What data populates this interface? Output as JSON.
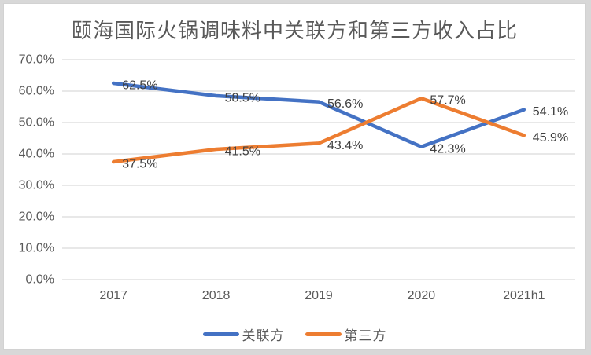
{
  "chart_data": {
    "type": "line",
    "title": "颐海国际火锅调味料中关联方和第三方收入占比",
    "categories": [
      "2017",
      "2018",
      "2019",
      "2020",
      "2021h1"
    ],
    "series": [
      {
        "name": "关联方",
        "color": "#4472C4",
        "values": [
          62.5,
          58.5,
          56.6,
          42.3,
          54.1
        ],
        "labels": [
          "62.5%",
          "58.5%",
          "56.6%",
          "42.3%",
          "54.1%"
        ]
      },
      {
        "name": "第三方",
        "color": "#ED7D31",
        "values": [
          37.5,
          41.5,
          43.4,
          57.7,
          45.9
        ],
        "labels": [
          "37.5%",
          "41.5%",
          "43.4%",
          "57.7%",
          "45.9%"
        ]
      }
    ],
    "ylim": [
      0,
      70
    ],
    "ytick_step": 10,
    "ytick_labels": [
      "0.0%",
      "10.0%",
      "20.0%",
      "30.0%",
      "40.0%",
      "50.0%",
      "60.0%",
      "70.0%"
    ],
    "xlabel": "",
    "ylabel": "",
    "grid": true,
    "legend_position": "bottom",
    "colors": {
      "gridline": "#d9d9d9",
      "axis_text": "#595959",
      "data_label_text": "#404040",
      "title_text": "#595959",
      "card_background": "#ffffff",
      "page_edge": "#d8d8d8"
    }
  }
}
